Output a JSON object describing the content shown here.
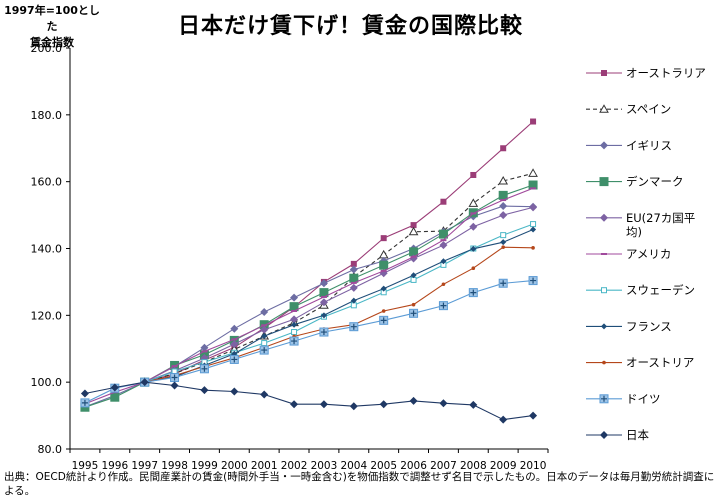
{
  "y_label_line1": "1997年=100とした",
  "y_label_line2": "賃金指数",
  "footnote": "出典：OECD統計より作成。民間産業計の賃金(時間外手当・一時金含む)を物価指数で調整せず名目で示したもの。日本のデータは毎月勤労統計調査による。",
  "chart_data": {
    "type": "line",
    "title": "日本だけ賃下げ！賃金の国際比較",
    "xlabel": "",
    "ylabel": "1997年=100とした 賃金指数",
    "ylim": [
      80,
      200
    ],
    "yticks": [
      "80.0",
      "100.0",
      "120.0",
      "140.0",
      "160.0",
      "180.0",
      "200.0"
    ],
    "x": [
      "1995",
      "1996",
      "1997",
      "1998",
      "1999",
      "2000",
      "2001",
      "2002",
      "2003",
      "2004",
      "2005",
      "2006",
      "2007",
      "2008",
      "2009",
      "2010"
    ],
    "grid": false,
    "legend_position": "right",
    "series": [
      {
        "name": "オーストラリア",
        "color": "#9b3d77",
        "marker": "square",
        "dash": "",
        "values": [
          null,
          null,
          100,
          102.5,
          106.6,
          110.4,
          116.2,
          122.5,
          130.0,
          135.4,
          143.1,
          147.0,
          154.0,
          162.0,
          170.0,
          178.0
        ]
      },
      {
        "name": "スペイン",
        "color": "#333333",
        "marker": "triangle",
        "dash": "4,3",
        "values": [
          null,
          null,
          100,
          102.6,
          106.0,
          109.8,
          113.8,
          117.8,
          123.0,
          131.5,
          138.1,
          145.0,
          145.2,
          153.5,
          160.2,
          162.5
        ]
      },
      {
        "name": "イギリス",
        "color": "#6d6da3",
        "marker": "diamond",
        "dash": "",
        "values": [
          92.6,
          96.0,
          100,
          104.7,
          110.3,
          116.0,
          121.0,
          125.3,
          129.6,
          133.7,
          136.3,
          140.0,
          145.0,
          149.6,
          152.7,
          152.5
        ]
      },
      {
        "name": "デンマーク",
        "color": "#3f8f6a",
        "marker": "square-big",
        "dash": "",
        "values": [
          92.5,
          95.5,
          100,
          105.0,
          108.2,
          112.5,
          117.2,
          122.6,
          126.8,
          131.1,
          135.0,
          139.0,
          144.3,
          150.7,
          155.9,
          159.0
        ]
      },
      {
        "name": "EU(27カ国平均)",
        "color": "#7d62a3",
        "marker": "diamond",
        "dash": "",
        "values": [
          null,
          null,
          100,
          103.4,
          107.2,
          111.4,
          115.7,
          118.8,
          123.9,
          128.2,
          132.6,
          137.0,
          141.0,
          146.5,
          150.0,
          152.3
        ]
      },
      {
        "name": "アメリカ",
        "color": "#a04a9c",
        "marker": "dash",
        "dash": "",
        "values": [
          93.5,
          97.0,
          100,
          104.8,
          109.2,
          112.8,
          117.0,
          121.3,
          125.5,
          129.7,
          133.3,
          137.5,
          142.5,
          150.5,
          154.5,
          158.0
        ]
      },
      {
        "name": "スウェーデン",
        "color": "#4ab7c6",
        "marker": "square-small",
        "dash": "",
        "values": [
          null,
          null,
          100,
          103.2,
          106.0,
          108.8,
          111.7,
          115.0,
          119.6,
          123.0,
          126.9,
          130.6,
          135.1,
          140.0,
          144.0,
          147.3
        ]
      },
      {
        "name": "フランス",
        "color": "#1f4e79",
        "marker": "diamond-small",
        "dash": "",
        "values": [
          null,
          null,
          100,
          101.6,
          105.0,
          108.5,
          113.8,
          117.2,
          120.0,
          124.4,
          128.0,
          132.0,
          136.2,
          139.9,
          141.9,
          145.7
        ]
      },
      {
        "name": "オーストリア",
        "color": "#b5471b",
        "marker": "dot",
        "dash": "",
        "values": [
          null,
          null,
          100,
          102.0,
          104.7,
          107.3,
          110.4,
          113.7,
          115.9,
          117.2,
          121.3,
          123.2,
          129.3,
          134.1,
          140.4,
          140.2
        ]
      },
      {
        "name": "ドイツ",
        "color": "#5b9bd5",
        "marker": "plus-square",
        "dash": "",
        "values": [
          93.8,
          98.2,
          100,
          101.4,
          104.0,
          106.8,
          109.6,
          112.3,
          115.0,
          116.6,
          118.5,
          120.6,
          122.9,
          126.8,
          129.6,
          130.4
        ]
      },
      {
        "name": "日本",
        "color": "#1f3864",
        "marker": "diamond",
        "dash": "",
        "values": [
          96.6,
          98.4,
          100,
          99.0,
          97.6,
          97.2,
          96.3,
          93.4,
          93.4,
          92.8,
          93.4,
          94.4,
          93.7,
          93.2,
          88.8,
          90.0
        ]
      }
    ]
  }
}
